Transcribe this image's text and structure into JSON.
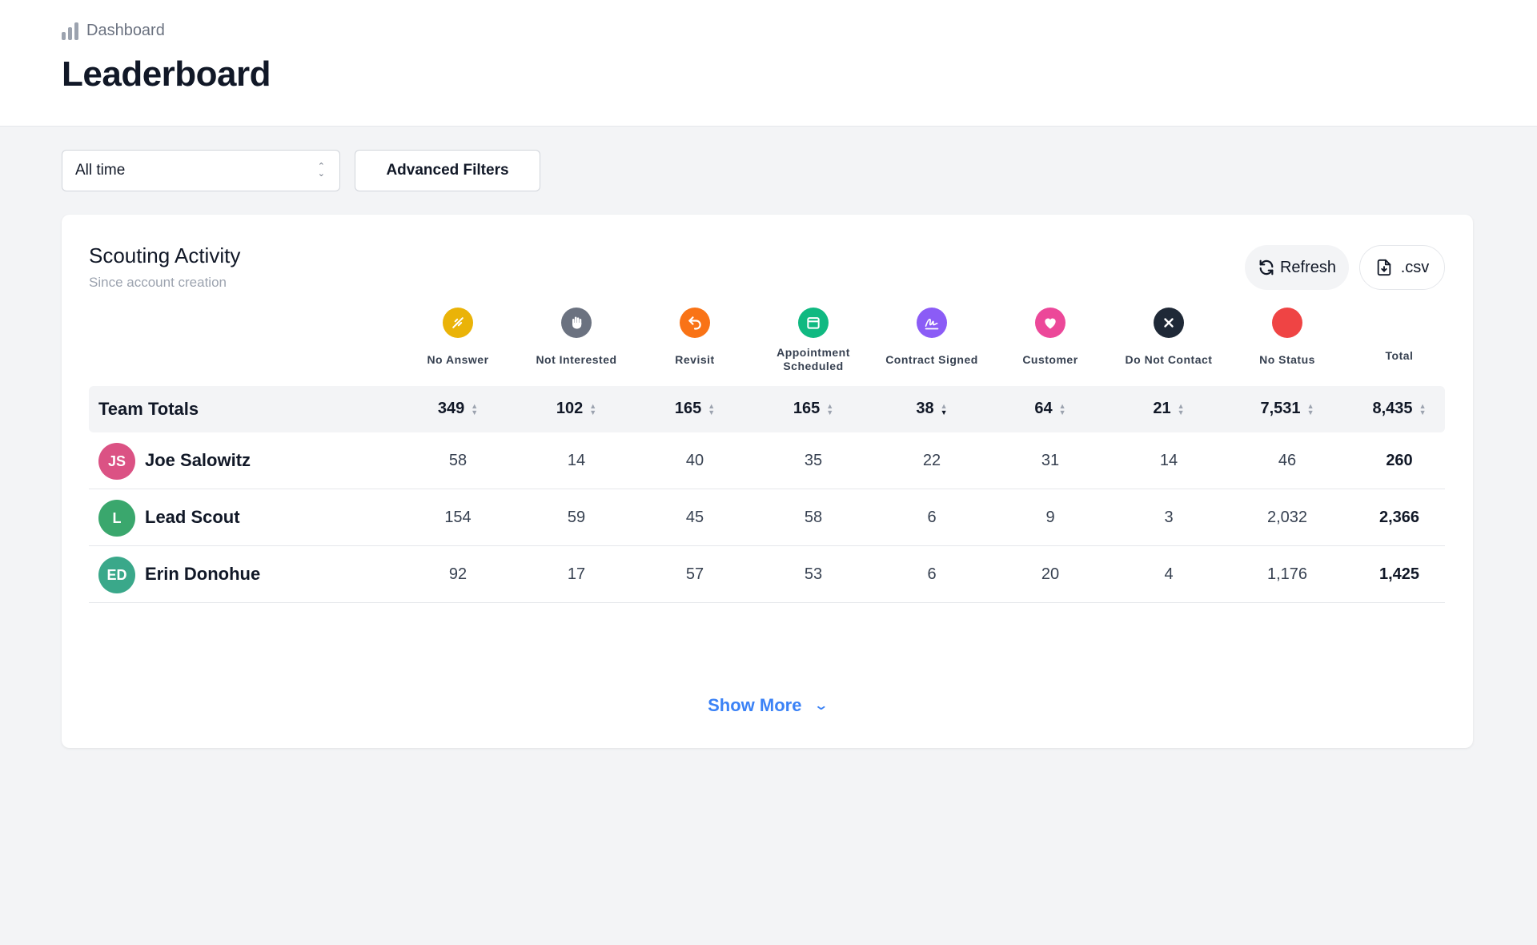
{
  "breadcrumb": {
    "label": "Dashboard",
    "icon": "bar-chart-icon"
  },
  "page": {
    "title": "Leaderboard"
  },
  "filters": {
    "range_value": "All time",
    "advanced_label": "Advanced Filters"
  },
  "card": {
    "title": "Scouting Activity",
    "subtitle": "Since account creation",
    "refresh_label": "Refresh",
    "csv_label": ".csv",
    "show_more_label": "Show More"
  },
  "columns": [
    {
      "label": "No Answer",
      "color": "#eab308",
      "icon": "no-answer-icon"
    },
    {
      "label": "Not Interested",
      "color": "#6b7280",
      "icon": "hand-icon"
    },
    {
      "label": "Revisit",
      "color": "#f97316",
      "icon": "undo-arrow-icon"
    },
    {
      "label": "Appointment Scheduled",
      "color": "#10b981",
      "icon": "calendar-icon"
    },
    {
      "label": "Contract Signed",
      "color": "#8b5cf6",
      "icon": "signature-icon"
    },
    {
      "label": "Customer",
      "color": "#ec4899",
      "icon": "heart-icon"
    },
    {
      "label": "Do Not Contact",
      "color": "#1f2937",
      "icon": "x-icon"
    },
    {
      "label": "No Status",
      "color": "#ef4444",
      "icon": "circle-icon"
    }
  ],
  "total_label": "Total",
  "totals": {
    "label": "Team Totals",
    "values": [
      "349",
      "102",
      "165",
      "165",
      "38",
      "64",
      "21",
      "7,531",
      "8,435"
    ]
  },
  "rows": [
    {
      "initials": "JS",
      "name": "Joe Salowitz",
      "avatar_color": "#db5284",
      "values": [
        "58",
        "14",
        "40",
        "35",
        "22",
        "31",
        "14",
        "46",
        "260"
      ]
    },
    {
      "initials": "L",
      "name": "Lead Scout",
      "avatar_color": "#3aa76d",
      "values": [
        "154",
        "59",
        "45",
        "58",
        "6",
        "9",
        "3",
        "2,032",
        "2,366"
      ]
    },
    {
      "initials": "ED",
      "name": "Erin Donohue",
      "avatar_color": "#3aa88a",
      "values": [
        "92",
        "17",
        "57",
        "53",
        "6",
        "20",
        "4",
        "1,176",
        "1,425"
      ]
    }
  ]
}
